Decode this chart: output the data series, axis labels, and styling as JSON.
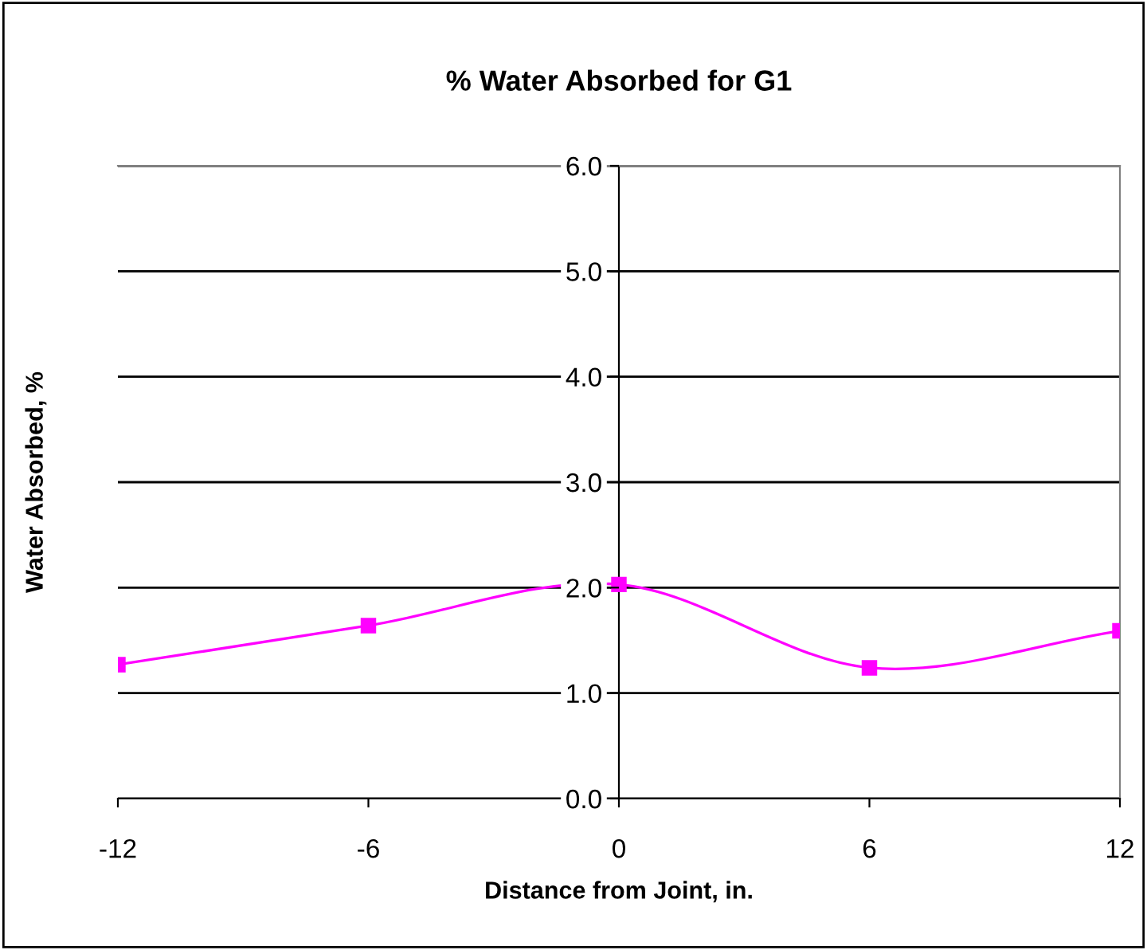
{
  "chart_data": {
    "type": "line",
    "title": "% Water Absorbed for G1",
    "xlabel": "Distance from Joint, in.",
    "ylabel": "Water Absorbed, %",
    "x": [
      -12,
      -6,
      0,
      6,
      12
    ],
    "series": [
      {
        "color": "#ff00ff",
        "values": [
          1.27,
          1.64,
          2.03,
          1.24,
          1.59
        ]
      }
    ],
    "xlim": [
      -12,
      12
    ],
    "xticks": [
      -12,
      -6,
      0,
      6,
      12
    ],
    "ylim": [
      0,
      6
    ],
    "yticks": [
      {
        "value": 0,
        "label": "0.0"
      },
      {
        "value": 1,
        "label": "1.0"
      },
      {
        "value": 2,
        "label": "2.0"
      },
      {
        "value": 3,
        "label": "3.0"
      },
      {
        "value": 4,
        "label": "4.0"
      },
      {
        "value": 5,
        "label": "5.0"
      },
      {
        "value": 6,
        "label": "6.0"
      }
    ],
    "grid": "y",
    "marker": "square",
    "line_style": "solid",
    "legend": false
  }
}
